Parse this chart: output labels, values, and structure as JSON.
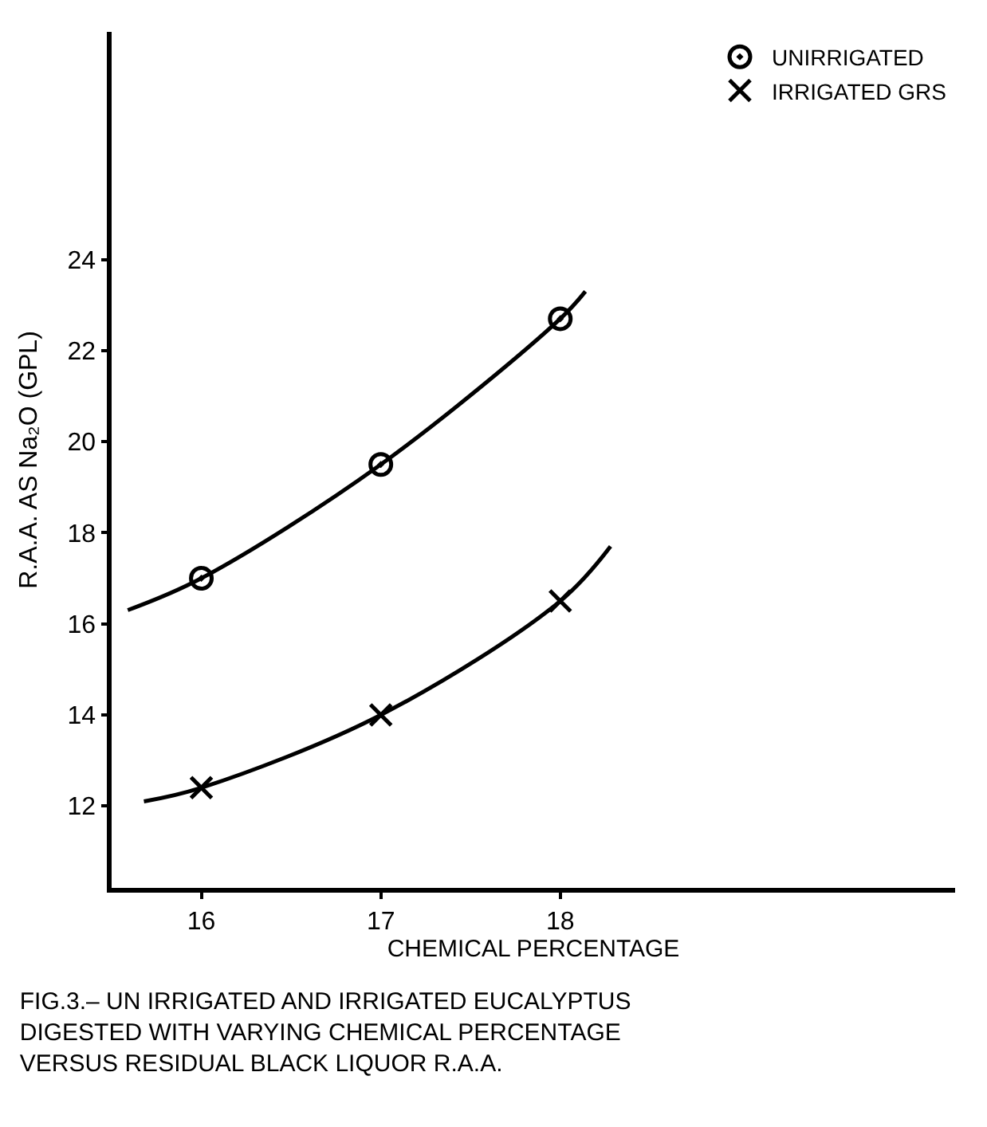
{
  "chart_data": {
    "type": "scatter",
    "title": "FIG.3.– UN IRRIGATED AND IRRIGATED EUCALYPTUS DIGESTED WITH VARYING CHEMICAL PERCENTAGE VERSUS RESIDUAL BLACK LIQUOR R.A.A.",
    "xlabel": "CHEMICAL PERCENTAGE",
    "ylabel": "R.A.A. AS Na₂O (GPL)",
    "xlim": [
      15.5,
      20.2
    ],
    "xticks": [
      16,
      17,
      18
    ],
    "ylim": [
      10.2,
      29
    ],
    "yticks": [
      12,
      14,
      16,
      18,
      20,
      22,
      24
    ],
    "legend": "top right",
    "series": [
      {
        "name": "UNIRRIGATED",
        "color": "#000000",
        "marker": "circle",
        "x": [
          16,
          17,
          18
        ],
        "values": [
          17.0,
          19.5,
          22.7
        ]
      },
      {
        "name": "IRRIGATED GRS",
        "color": "#000000",
        "marker": "cross",
        "x": [
          16,
          17,
          18
        ],
        "values": [
          12.4,
          14.0,
          16.5
        ]
      },
      {
        "type": "line",
        "color": "#000000",
        "marker": "none",
        "x": [
          15.59,
          16,
          17,
          18,
          18.14
        ],
        "values": [
          16.3,
          17.0,
          19.5,
          22.7,
          23.3
        ]
      },
      {
        "type": "line",
        "color": "#000000",
        "marker": "none",
        "x": [
          15.68,
          16,
          17,
          18,
          18.28
        ],
        "values": [
          12.1,
          12.4,
          14.0,
          16.5,
          17.7
        ]
      }
    ]
  }
}
